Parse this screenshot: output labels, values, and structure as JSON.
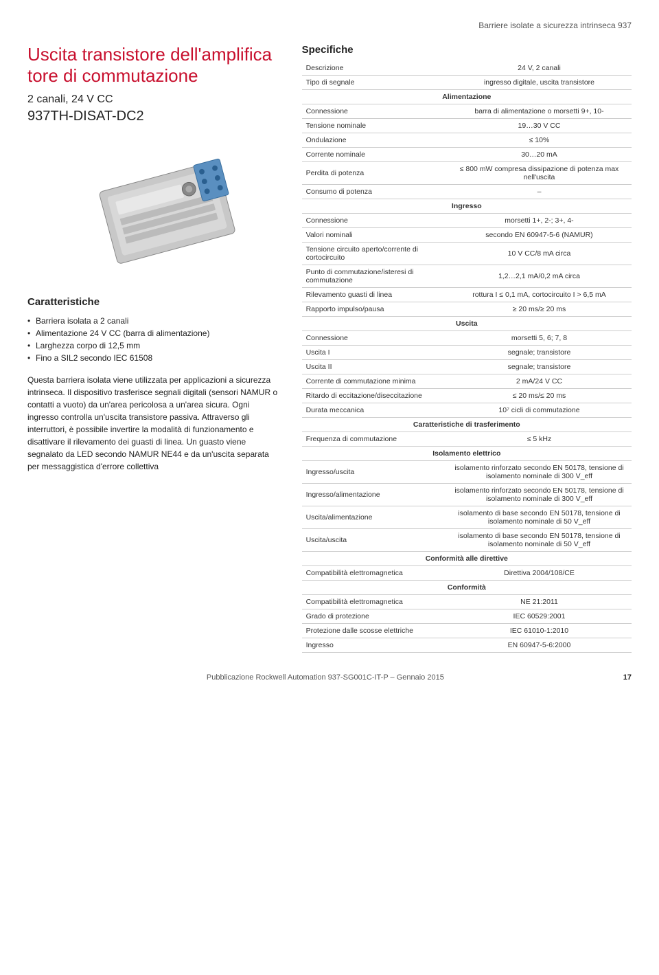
{
  "header_right": "Barriere isolate a sicurezza intrinseca 937",
  "title_line1": "Uscita transistore dell'amplifica",
  "title_line2": "tore di commutazione",
  "subtitle": "2 canali, 24 V CC",
  "model": "937TH-DISAT-DC2",
  "features_heading": "Caratteristiche",
  "bullets": [
    "Barriera isolata a 2 canali",
    "Alimentazione 24 V CC (barra di alimentazione)",
    "Larghezza corpo di 12,5 mm",
    "Fino a SIL2 secondo IEC 61508"
  ],
  "body_text": "Questa barriera isolata viene utilizzata per applicazioni a sicurezza intrinseca. Il dispositivo trasferisce segnali digitali (sensori NAMUR o contatti a vuoto) da un'area pericolosa a un'area sicura. Ogni ingresso controlla un'uscita transistore passiva. Attraverso gli interruttori, è possibile invertire la modalità di funzionamento e disattivare il rilevamento dei guasti di linea. Un guasto viene segnalato da LED secondo NAMUR NE44 e da un'uscita separata per messaggistica d'errore collettiva",
  "spec_heading": "Specifiche",
  "specs": [
    {
      "k": "Descrizione",
      "v": "24 V, 2 canali"
    },
    {
      "k": "Tipo di segnale",
      "v": "ingresso digitale, uscita transistore"
    },
    {
      "section": "Alimentazione"
    },
    {
      "k": "Connessione",
      "v": "barra di alimentazione o morsetti 9+, 10-"
    },
    {
      "k": "Tensione nominale",
      "v": "19…30 V CC"
    },
    {
      "k": "Ondulazione",
      "v": "≤ 10%"
    },
    {
      "k": "Corrente nominale",
      "v": "30…20 mA"
    },
    {
      "k": "Perdita di potenza",
      "v": "≤ 800 mW compresa dissipazione di potenza max nell'uscita"
    },
    {
      "k": "Consumo di potenza",
      "v": "–"
    },
    {
      "section": "Ingresso"
    },
    {
      "k": "Connessione",
      "v": "morsetti 1+, 2-; 3+, 4-"
    },
    {
      "k": "Valori nominali",
      "v": "secondo EN 60947-5-6 (NAMUR)"
    },
    {
      "k": "Tensione circuito aperto/corrente di cortocircuito",
      "v": "10 V CC/8 mA circa"
    },
    {
      "k": "Punto di commutazione/isteresi di commutazione",
      "v": "1,2…2,1 mA/0,2 mA circa"
    },
    {
      "k": "Rilevamento guasti di linea",
      "v": "rottura I ≤ 0,1 mA, cortocircuito I > 6,5 mA"
    },
    {
      "k": "Rapporto impulso/pausa",
      "v": "≥ 20 ms/≥ 20 ms"
    },
    {
      "section": "Uscita"
    },
    {
      "k": "Connessione",
      "v": "morsetti 5, 6; 7, 8"
    },
    {
      "k": "Uscita I",
      "v": "segnale; transistore"
    },
    {
      "k": "Uscita II",
      "v": "segnale; transistore"
    },
    {
      "k": "Corrente di commutazione minima",
      "v": "2 mA/24 V CC"
    },
    {
      "k": "Ritardo di eccitazione/diseccitazione",
      "v": "≤ 20 ms/≤ 20 ms"
    },
    {
      "k": "Durata meccanica",
      "v": "10⁷ cicli di commutazione"
    },
    {
      "section": "Caratteristiche di trasferimento"
    },
    {
      "k": "Frequenza di commutazione",
      "v": "≤ 5 kHz"
    },
    {
      "section": "Isolamento elettrico"
    },
    {
      "k": "Ingresso/uscita",
      "v": "isolamento rinforzato secondo EN 50178, tensione di isolamento nominale di 300 V_eff"
    },
    {
      "k": "Ingresso/alimentazione",
      "v": "isolamento rinforzato secondo EN 50178, tensione di isolamento nominale di 300 V_eff"
    },
    {
      "k": "Uscita/alimentazione",
      "v": "isolamento di base secondo EN 50178, tensione di isolamento nominale di 50 V_eff"
    },
    {
      "k": "Uscita/uscita",
      "v": "isolamento di base secondo EN 50178, tensione di isolamento nominale di 50 V_eff"
    },
    {
      "section": "Conformità alle direttive"
    },
    {
      "k": "Compatibilità elettromagnetica",
      "v": "Direttiva 2004/108/CE"
    },
    {
      "section": "Conformità"
    },
    {
      "k": "Compatibilità elettromagnetica",
      "v": "NE 21:2011"
    },
    {
      "k": "Grado di protezione",
      "v": "IEC 60529:2001"
    },
    {
      "k": "Protezione dalle scosse elettriche",
      "v": "IEC 61010-1:2010"
    },
    {
      "k": "Ingresso",
      "v": "EN 60947-5-6:2000"
    }
  ],
  "footer_text": "Pubblicazione Rockwell Automation 937-SG001C-IT-P – Gennaio 2015",
  "page_number": "17",
  "colors": {
    "brand_red": "#c8102e",
    "text": "#333333",
    "border": "#cccccc"
  }
}
